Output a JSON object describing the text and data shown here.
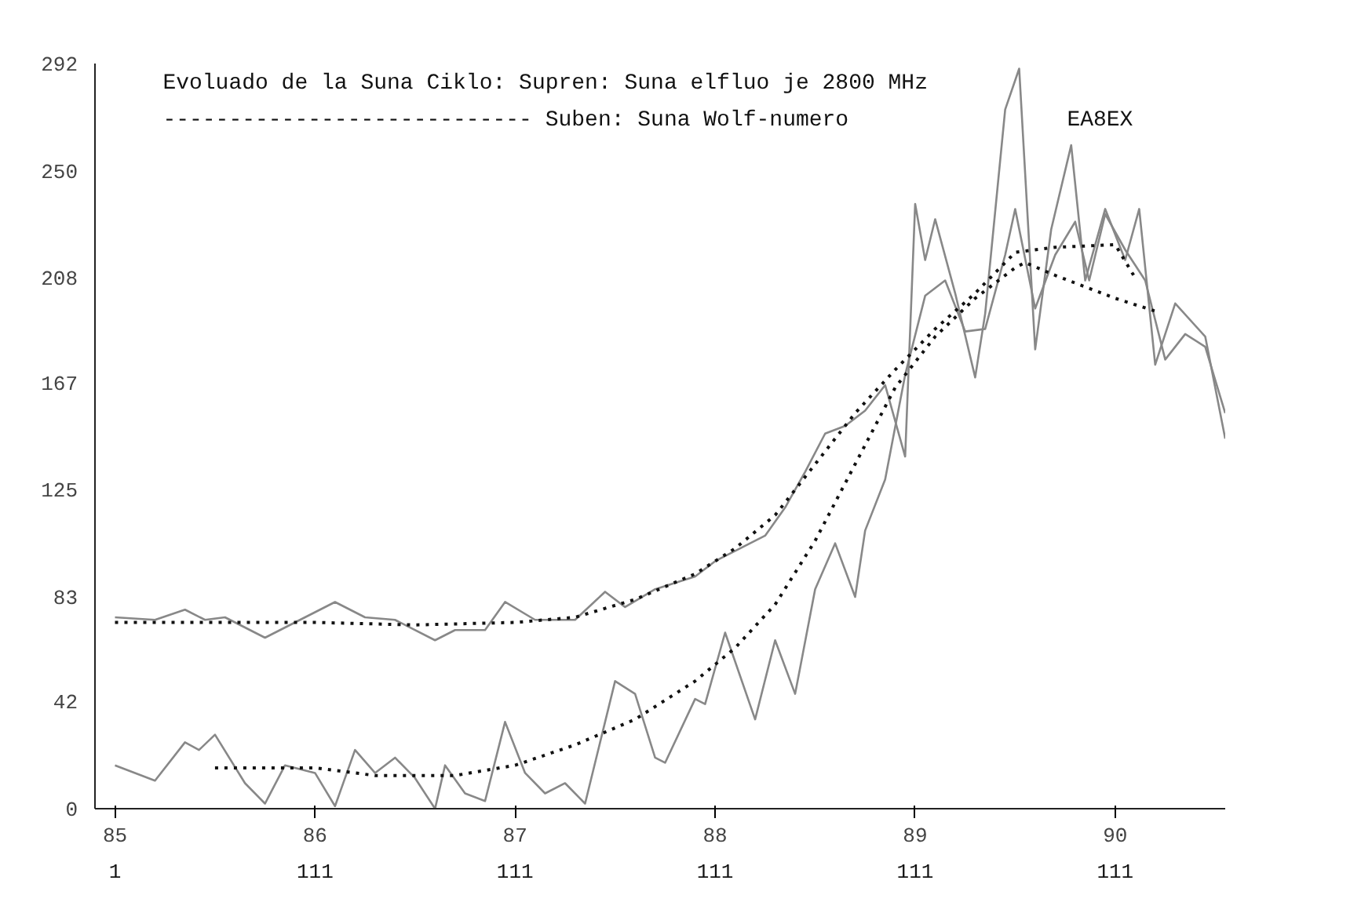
{
  "chart_data": {
    "type": "line",
    "title": "Evoluado de la Suna Ciklo: Supren: Suna elfluo je 2800 MHz",
    "annotations": [
      "---------------------------- Suben:  Suna Wolf-numero",
      "EA8EX",
      "1",
      "111",
      "111",
      "111",
      "111",
      "111"
    ],
    "xlim": [
      84.9,
      90.55
    ],
    "ylim": [
      0,
      292
    ],
    "xticks": [
      85,
      86,
      87,
      88,
      89,
      90
    ],
    "yticks": [
      0,
      42,
      83,
      125,
      167,
      208,
      250,
      292
    ],
    "grid": false,
    "marker": "none",
    "series": [
      {
        "color": "#888888",
        "line_style": "solid",
        "x": [
          85.0,
          85.2,
          85.35,
          85.45,
          85.55,
          85.75,
          85.9,
          86.1,
          86.25,
          86.4,
          86.6,
          86.7,
          86.85,
          86.95,
          87.1,
          87.3,
          87.45,
          87.55,
          87.7,
          87.9,
          88.0,
          88.1,
          88.25,
          88.35,
          88.45,
          88.55,
          88.65,
          88.75,
          88.85,
          88.95,
          89.0,
          89.05,
          89.1,
          89.2,
          89.3,
          89.35,
          89.45,
          89.52,
          89.6,
          89.68,
          89.78,
          89.85,
          89.95,
          90.05,
          90.12,
          90.2,
          90.3,
          90.45,
          90.55
        ],
        "values": [
          75,
          74,
          78,
          74,
          75,
          67,
          73,
          81,
          75,
          74,
          66,
          70,
          70,
          81,
          74,
          74,
          85,
          79,
          86,
          91,
          97,
          101,
          107,
          118,
          132,
          147,
          150,
          156,
          166,
          138,
          237,
          215,
          231,
          202,
          169,
          194,
          274,
          290,
          180,
          227,
          260,
          207,
          235,
          215,
          235,
          174,
          198,
          185,
          145
        ]
      },
      {
        "color": "#888888",
        "line_style": "solid",
        "x": [
          85.0,
          85.2,
          85.35,
          85.42,
          85.5,
          85.65,
          85.75,
          85.85,
          86.0,
          86.1,
          86.2,
          86.3,
          86.4,
          86.5,
          86.6,
          86.65,
          86.75,
          86.85,
          86.95,
          87.05,
          87.15,
          87.25,
          87.35,
          87.5,
          87.6,
          87.7,
          87.75,
          87.9,
          87.95,
          88.05,
          88.2,
          88.3,
          88.4,
          88.5,
          88.6,
          88.7,
          88.75,
          88.85,
          88.95,
          89.05,
          89.15,
          89.25,
          89.35,
          89.45,
          89.5,
          89.6,
          89.7,
          89.8,
          89.87,
          89.95,
          90.05,
          90.15,
          90.25,
          90.35,
          90.45,
          90.55
        ],
        "values": [
          17,
          11,
          26,
          23,
          29,
          10,
          2,
          17,
          14,
          1,
          23,
          14,
          20,
          12,
          0,
          17,
          6,
          3,
          34,
          14,
          6,
          10,
          2,
          50,
          45,
          20,
          18,
          43,
          41,
          69,
          35,
          66,
          45,
          86,
          104,
          83,
          109,
          129,
          170,
          201,
          207,
          187,
          188,
          217,
          235,
          196,
          217,
          230,
          207,
          233,
          219,
          207,
          176,
          186,
          181,
          155
        ]
      },
      {
        "color": "#111111",
        "line_style": "dotted",
        "x": [
          85.0,
          85.5,
          86.0,
          86.5,
          87.0,
          87.3,
          87.6,
          87.9,
          88.1,
          88.3,
          88.5,
          88.7,
          88.9,
          89.1,
          89.3,
          89.5,
          89.7,
          90.0,
          90.1
        ],
        "values": [
          73,
          73,
          73,
          72,
          73,
          75,
          82,
          92,
          102,
          115,
          135,
          155,
          172,
          188,
          202,
          218,
          220,
          221,
          208
        ]
      },
      {
        "color": "#111111",
        "line_style": "dotted",
        "x": [
          85.5,
          86.0,
          86.3,
          86.7,
          87.0,
          87.3,
          87.6,
          87.9,
          88.1,
          88.3,
          88.5,
          88.7,
          88.9,
          89.1,
          89.3,
          89.5,
          89.55,
          89.7,
          90.0,
          90.2
        ],
        "values": [
          16,
          16,
          13,
          13,
          17,
          25,
          35,
          50,
          63,
          80,
          105,
          135,
          165,
          185,
          200,
          212,
          214,
          209,
          200,
          195
        ]
      }
    ]
  }
}
